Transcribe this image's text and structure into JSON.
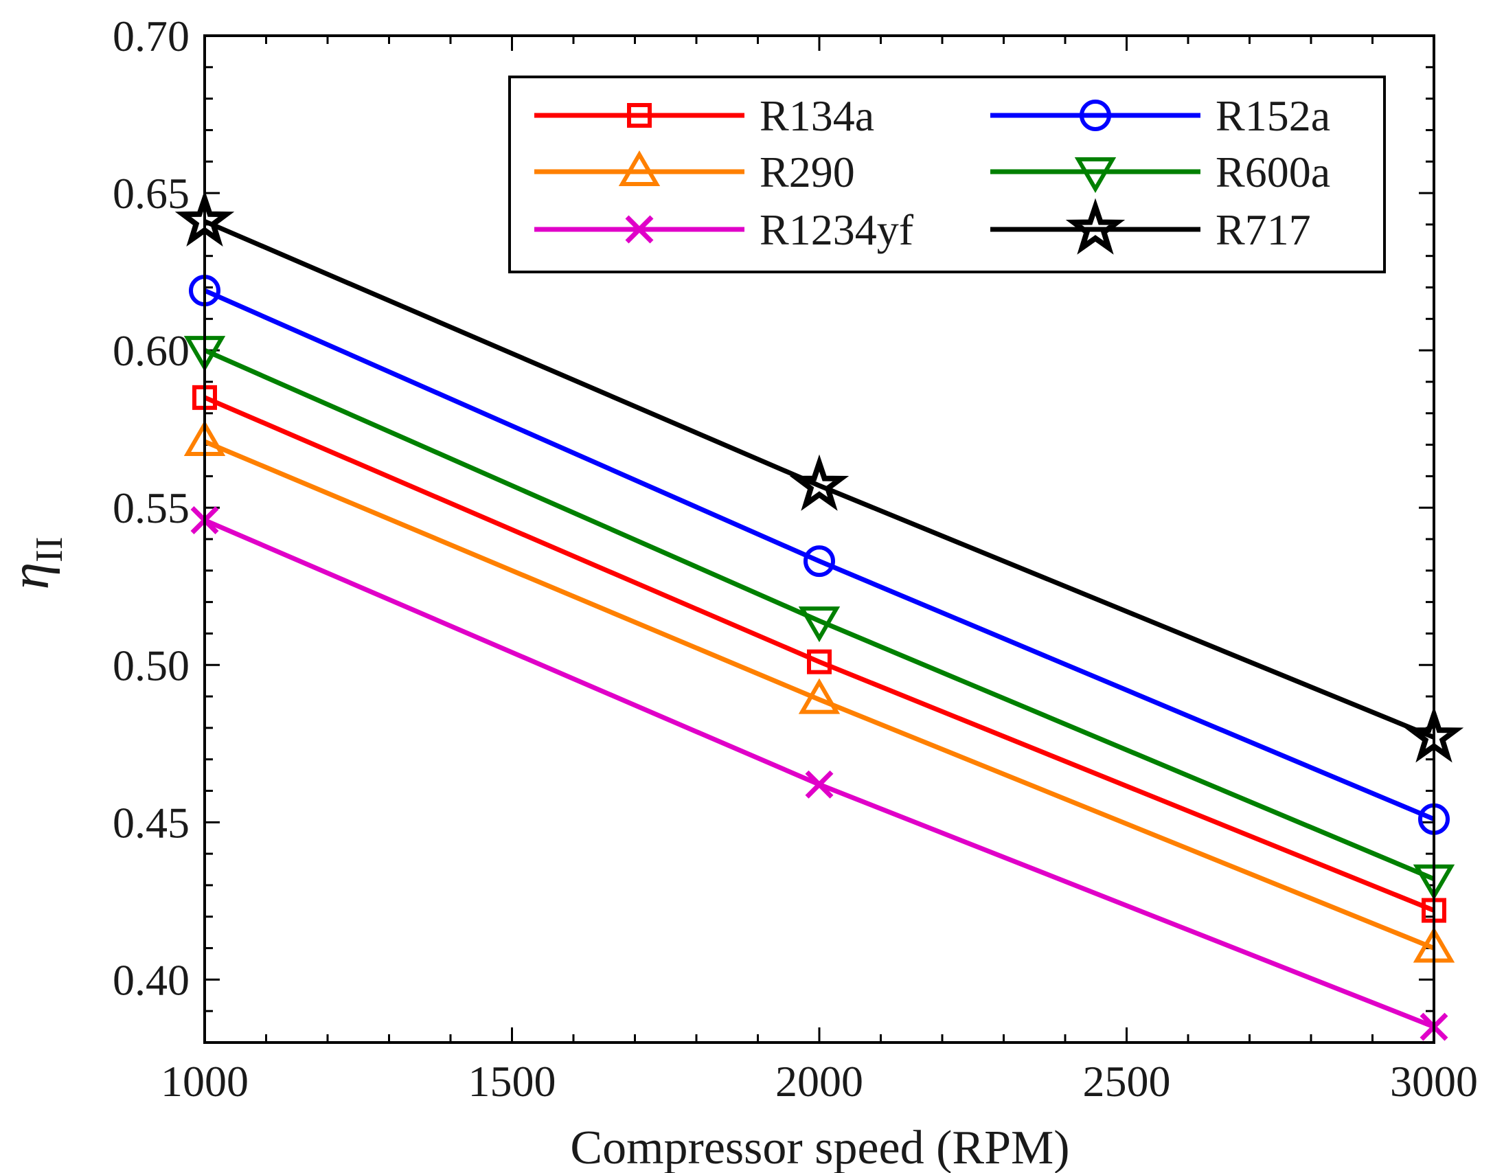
{
  "chart_data": {
    "type": "line",
    "title": "",
    "xlabel": "Compressor speed (RPM)",
    "ylabel_symbol": "η",
    "ylabel_subscript": "II",
    "x": [
      1000,
      2000,
      3000
    ],
    "xlim": [
      1000,
      3000
    ],
    "ylim": [
      0.38,
      0.7
    ],
    "xticks": [
      1000,
      1500,
      2000,
      2500,
      3000
    ],
    "xtick_labels": [
      "1000",
      "1500",
      "2000",
      "2500",
      "3000"
    ],
    "yticks": [
      0.4,
      0.45,
      0.5,
      0.55,
      0.6,
      0.65,
      0.7
    ],
    "ytick_labels": [
      "0.40",
      "0.45",
      "0.50",
      "0.55",
      "0.60",
      "0.65",
      "0.70"
    ],
    "grid": false,
    "legend_position": "top-right",
    "series": [
      {
        "name": "R134a",
        "color": "#ff0000",
        "marker": "square",
        "values": [
          0.585,
          0.501,
          0.422
        ]
      },
      {
        "name": "R152a",
        "color": "#0000ff",
        "marker": "circle",
        "values": [
          0.619,
          0.533,
          0.451
        ]
      },
      {
        "name": "R290",
        "color": "#ff8000",
        "marker": "triangle-up",
        "values": [
          0.571,
          0.489,
          0.41
        ]
      },
      {
        "name": "R600a",
        "color": "#008000",
        "marker": "triangle-down",
        "values": [
          0.6,
          0.514,
          0.432
        ]
      },
      {
        "name": "R1234yf",
        "color": "#e000c8",
        "marker": "x",
        "values": [
          0.546,
          0.462,
          0.385
        ]
      },
      {
        "name": "R717",
        "color": "#000000",
        "marker": "star",
        "values": [
          0.641,
          0.557,
          0.477
        ]
      }
    ]
  }
}
